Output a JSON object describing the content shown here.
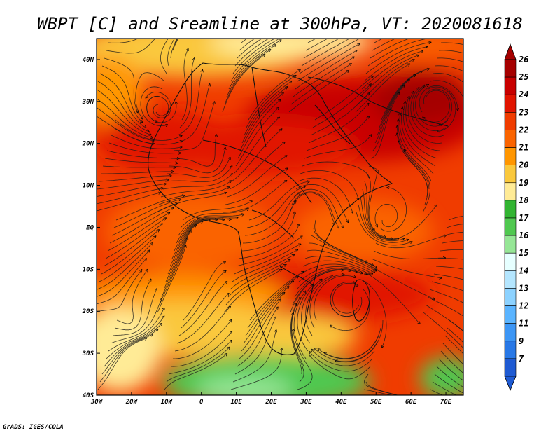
{
  "map": {
    "title": "WBPT [C] and Sreamline at 300hPa, VT: 2020081618",
    "footer": "GrADS: IGES/COLA",
    "lon_range": [
      -30,
      75
    ],
    "lat_range": [
      -40,
      45
    ],
    "x_ticks": [
      {
        "lon": -30,
        "label": "30W"
      },
      {
        "lon": -20,
        "label": "20W"
      },
      {
        "lon": -10,
        "label": "10W"
      },
      {
        "lon": 0,
        "label": "0"
      },
      {
        "lon": 10,
        "label": "10E"
      },
      {
        "lon": 20,
        "label": "20E"
      },
      {
        "lon": 30,
        "label": "30E"
      },
      {
        "lon": 40,
        "label": "40E"
      },
      {
        "lon": 50,
        "label": "50E"
      },
      {
        "lon": 60,
        "label": "60E"
      },
      {
        "lon": 70,
        "label": "70E"
      }
    ],
    "y_ticks": [
      {
        "lat": 40,
        "label": "40N"
      },
      {
        "lat": 30,
        "label": "30N"
      },
      {
        "lat": 20,
        "label": "20N"
      },
      {
        "lat": 10,
        "label": "10N"
      },
      {
        "lat": 0,
        "label": "EQ"
      },
      {
        "lat": -10,
        "label": "10S"
      },
      {
        "lat": -20,
        "label": "20S"
      },
      {
        "lat": -30,
        "label": "30S"
      },
      {
        "lat": -40,
        "label": "40S"
      }
    ]
  },
  "colorbar": {
    "levels": [
      {
        "label": "26",
        "color": "#a50000"
      },
      {
        "label": "25",
        "color": "#c80000"
      },
      {
        "label": "24",
        "color": "#e11400"
      },
      {
        "label": "23",
        "color": "#f03c00"
      },
      {
        "label": "22",
        "color": "#fa6400"
      },
      {
        "label": "21",
        "color": "#ff9600"
      },
      {
        "label": "20",
        "color": "#fac83c"
      },
      {
        "label": "19",
        "color": "#ffeb96"
      },
      {
        "label": "18",
        "color": "#32b432"
      },
      {
        "label": "17",
        "color": "#50c850"
      },
      {
        "label": "16",
        "color": "#96e696"
      },
      {
        "label": "15",
        "color": "#e6ffff"
      },
      {
        "label": "14",
        "color": "#b4e6ff"
      },
      {
        "label": "13",
        "color": "#8cd2ff"
      },
      {
        "label": "12",
        "color": "#5ab4ff"
      },
      {
        "label": "11",
        "color": "#3c96f5"
      },
      {
        "label": "9",
        "color": "#2878e6"
      },
      {
        "label": "7",
        "color": "#1e5ad2"
      }
    ]
  }
}
